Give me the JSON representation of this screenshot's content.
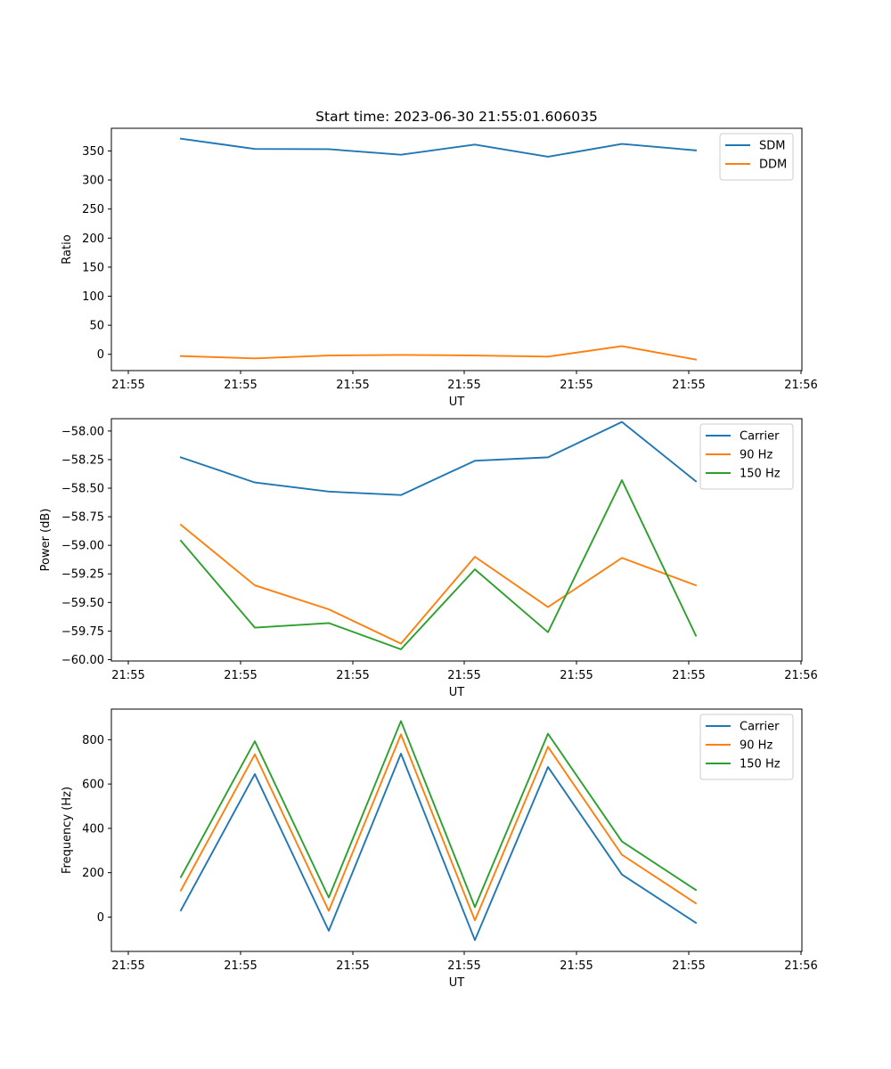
{
  "figure": {
    "title": "Start time: 2023-06-30 21:55:01.606035"
  },
  "chart_data": [
    {
      "type": "line",
      "xlabel": "UT",
      "ylabel": "Ratio",
      "x_tick_labels": [
        "21:55",
        "21:55",
        "21:55",
        "21:55",
        "21:55",
        "21:55",
        "21:56"
      ],
      "yticks": [
        0,
        50,
        100,
        150,
        200,
        250,
        300,
        350
      ],
      "ytick_labels": [
        "0",
        "50",
        "100",
        "150",
        "200",
        "250",
        "300",
        "350"
      ],
      "ylim": [
        -28,
        389
      ],
      "legend": "top-right",
      "grid": false,
      "series": [
        {
          "name": "SDM",
          "color": "#1f77b4",
          "values": [
            371,
            353.5,
            353,
            343.5,
            361,
            340,
            362,
            351
          ]
        },
        {
          "name": "DDM",
          "color": "#ff7f0e",
          "values": [
            -3,
            -7,
            -2,
            -1,
            -2,
            -4,
            14,
            -9
          ]
        }
      ]
    },
    {
      "type": "line",
      "xlabel": "UT",
      "ylabel": "Power (dB)",
      "x_tick_labels": [
        "21:55",
        "21:55",
        "21:55",
        "21:55",
        "21:55",
        "21:55",
        "21:56"
      ],
      "yticks": [
        -60.0,
        -59.75,
        -59.5,
        -59.25,
        -59.0,
        -58.75,
        -58.5,
        -58.25,
        -58.0
      ],
      "ytick_labels": [
        "−60.00",
        "−59.75",
        "−59.50",
        "−59.25",
        "−59.00",
        "−58.75",
        "−58.50",
        "−58.25",
        "−58.00"
      ],
      "ylim": [
        -60.012,
        -57.892
      ],
      "legend": "top-right",
      "grid": false,
      "series": [
        {
          "name": "Carrier",
          "color": "#1f77b4",
          "values": [
            -58.23,
            -58.45,
            -58.53,
            -58.56,
            -58.26,
            -58.23,
            -57.92,
            -58.44
          ]
        },
        {
          "name": "90 Hz",
          "color": "#ff7f0e",
          "values": [
            -58.82,
            -59.35,
            -59.56,
            -59.86,
            -59.1,
            -59.54,
            -59.11,
            -59.35
          ]
        },
        {
          "name": "150 Hz",
          "color": "#2ca02c",
          "values": [
            -58.96,
            -59.72,
            -59.68,
            -59.91,
            -59.21,
            -59.76,
            -58.43,
            -59.79
          ]
        }
      ]
    },
    {
      "type": "line",
      "xlabel": "UT",
      "ylabel": "Frequency (Hz)",
      "x_tick_labels": [
        "21:55",
        "21:55",
        "21:55",
        "21:55",
        "21:55",
        "21:55",
        "21:56"
      ],
      "yticks": [
        0,
        200,
        400,
        600,
        800
      ],
      "ytick_labels": [
        "0",
        "200",
        "400",
        "600",
        "800"
      ],
      "ylim": [
        -155,
        938
      ],
      "legend": "top-right",
      "grid": false,
      "series": [
        {
          "name": "Carrier",
          "color": "#1f77b4",
          "values": [
            30,
            645,
            -62,
            737,
            -104,
            677,
            192,
            -26
          ]
        },
        {
          "name": "90 Hz",
          "color": "#ff7f0e",
          "values": [
            120,
            734,
            28,
            824,
            -15,
            768,
            281,
            62
          ]
        },
        {
          "name": "150 Hz",
          "color": "#2ca02c",
          "values": [
            180,
            793,
            88,
            884,
            45,
            827,
            341,
            122
          ]
        }
      ]
    }
  ]
}
